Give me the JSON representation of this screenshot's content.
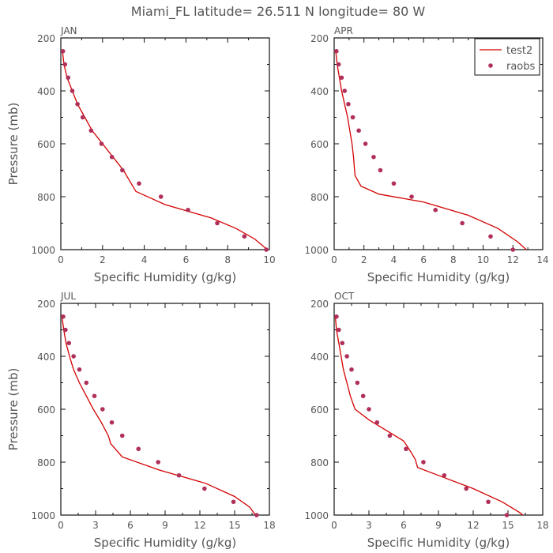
{
  "figure_title": "Miami_FL   latitude= 26.511 N longitude= 80 W",
  "colors": {
    "model_line": "#d40000",
    "obs_points": "#b0305a",
    "axes": "#111111",
    "text": "#555555"
  },
  "chart_data": [
    {
      "type": "line",
      "title": "JAN",
      "xlabel": "Specific Humidity (g/kg)",
      "ylabel": "Pressure (mb)",
      "xlim": [
        0,
        10
      ],
      "ylim": [
        200,
        1000
      ],
      "xticks": [
        0,
        2,
        4,
        6,
        8,
        10
      ],
      "yticks": [
        200,
        400,
        600,
        800,
        1000
      ],
      "y_inverted": true,
      "series": [
        {
          "name": "test2",
          "kind": "line",
          "x": [
            0.08,
            0.15,
            0.3,
            0.55,
            0.8,
            1.15,
            1.5,
            2.0,
            2.5,
            3.0,
            3.6,
            5.0,
            7.2,
            8.4,
            9.3,
            9.9
          ],
          "y": [
            250,
            300,
            350,
            400,
            450,
            500,
            550,
            600,
            650,
            700,
            780,
            830,
            880,
            920,
            960,
            1005
          ]
        },
        {
          "name": "raobs",
          "kind": "scatter",
          "x": [
            0.1,
            0.2,
            0.35,
            0.55,
            0.8,
            1.05,
            1.45,
            1.95,
            2.45,
            2.95,
            3.75,
            4.8,
            6.1,
            7.5,
            8.8,
            9.85
          ],
          "y": [
            250,
            300,
            350,
            400,
            450,
            500,
            550,
            600,
            650,
            700,
            750,
            800,
            850,
            900,
            950,
            1000
          ]
        }
      ]
    },
    {
      "type": "line",
      "title": "APR",
      "xlabel": "Specific Humidity (g/kg)",
      "ylabel": "",
      "xlim": [
        0,
        14
      ],
      "ylim": [
        200,
        1000
      ],
      "xticks": [
        0,
        2,
        4,
        6,
        8,
        10,
        12,
        14
      ],
      "yticks": [
        200,
        400,
        600,
        800,
        1000
      ],
      "y_inverted": true,
      "legend": {
        "location": "top-right",
        "entries": [
          "test2",
          "raobs"
        ]
      },
      "series": [
        {
          "name": "test2",
          "kind": "line",
          "x": [
            0.1,
            0.2,
            0.35,
            0.5,
            0.7,
            0.9,
            1.05,
            1.2,
            1.3,
            1.4,
            1.8,
            3.0,
            6.0,
            9.0,
            11.0,
            12.3,
            12.9
          ],
          "y": [
            250,
            300,
            350,
            400,
            450,
            500,
            550,
            600,
            650,
            720,
            760,
            790,
            820,
            870,
            920,
            970,
            1010
          ]
        },
        {
          "name": "raobs",
          "kind": "scatter",
          "x": [
            0.15,
            0.3,
            0.5,
            0.7,
            0.95,
            1.25,
            1.65,
            2.1,
            2.65,
            3.1,
            4.0,
            5.2,
            6.8,
            8.6,
            10.5,
            12.0
          ],
          "y": [
            250,
            300,
            350,
            400,
            450,
            500,
            550,
            600,
            650,
            700,
            750,
            800,
            850,
            900,
            950,
            1000
          ]
        }
      ]
    },
    {
      "type": "line",
      "title": "JUL",
      "xlabel": "Specific Humidity (g/kg)",
      "ylabel": "Pressure (mb)",
      "xlim": [
        0,
        18
      ],
      "ylim": [
        200,
        1000
      ],
      "xticks": [
        0,
        3,
        6,
        9,
        12,
        15,
        18
      ],
      "yticks": [
        200,
        400,
        600,
        800,
        1000
      ],
      "y_inverted": true,
      "series": [
        {
          "name": "test2",
          "kind": "line",
          "x": [
            0.1,
            0.25,
            0.45,
            0.75,
            1.1,
            1.6,
            2.2,
            2.8,
            3.5,
            4.1,
            4.3,
            5.3,
            8.5,
            12.5,
            15.0,
            16.3,
            16.8
          ],
          "y": [
            250,
            300,
            350,
            400,
            450,
            500,
            550,
            600,
            650,
            700,
            730,
            780,
            830,
            880,
            930,
            970,
            1005
          ]
        },
        {
          "name": "raobs",
          "kind": "scatter",
          "x": [
            0.2,
            0.4,
            0.7,
            1.1,
            1.6,
            2.2,
            2.9,
            3.6,
            4.4,
            5.3,
            6.7,
            8.4,
            10.2,
            12.4,
            14.9,
            16.9
          ],
          "y": [
            250,
            300,
            350,
            400,
            450,
            500,
            550,
            600,
            650,
            700,
            750,
            800,
            850,
            900,
            950,
            1000
          ]
        }
      ]
    },
    {
      "type": "line",
      "title": "OCT",
      "xlabel": "Specific Humidity (g/kg)",
      "ylabel": "",
      "xlim": [
        0,
        18
      ],
      "ylim": [
        200,
        1000
      ],
      "xticks": [
        0,
        3,
        6,
        9,
        12,
        15,
        18
      ],
      "yticks": [
        200,
        400,
        600,
        800,
        1000
      ],
      "y_inverted": true,
      "series": [
        {
          "name": "test2",
          "kind": "line",
          "x": [
            0.1,
            0.2,
            0.4,
            0.6,
            0.8,
            1.1,
            1.4,
            1.8,
            3.0,
            4.5,
            6.0,
            6.6,
            7.0,
            7.2,
            9.0,
            12.0,
            14.5,
            16.0,
            16.3
          ],
          "y": [
            250,
            300,
            350,
            400,
            450,
            500,
            550,
            600,
            640,
            680,
            720,
            760,
            790,
            820,
            850,
            900,
            950,
            990,
            1005
          ]
        },
        {
          "name": "raobs",
          "kind": "scatter",
          "x": [
            0.2,
            0.4,
            0.7,
            1.1,
            1.5,
            2.0,
            2.5,
            3.0,
            3.7,
            4.8,
            6.2,
            7.7,
            9.5,
            11.4,
            13.3,
            14.9
          ],
          "y": [
            250,
            300,
            350,
            400,
            450,
            500,
            550,
            600,
            650,
            700,
            750,
            800,
            850,
            900,
            950,
            1000
          ]
        }
      ]
    }
  ]
}
